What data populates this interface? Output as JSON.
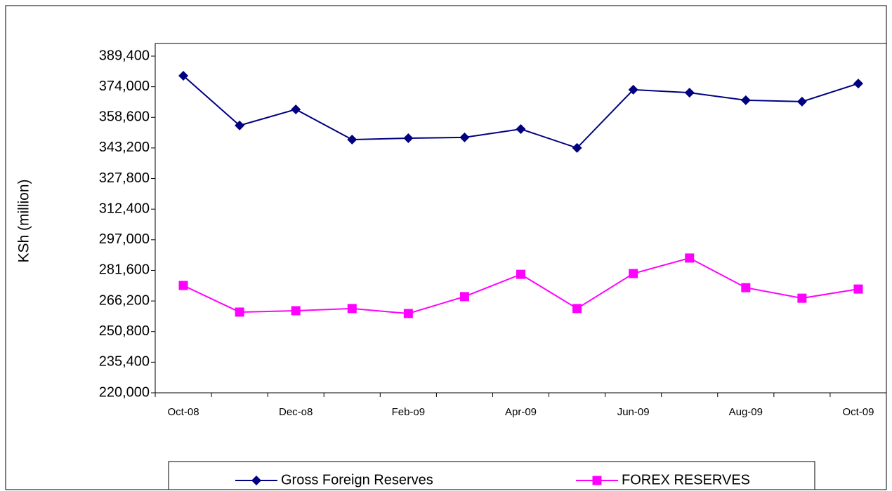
{
  "chart_data": {
    "type": "line",
    "y_label": "KSh (million)",
    "categories": [
      "Oct-08",
      null,
      "Dec-o8",
      null,
      "Feb-o9",
      null,
      "Apr-09",
      null,
      "Jun-09",
      null,
      "Aug-09",
      null,
      "Oct-09"
    ],
    "series": [
      {
        "name": "Gross Foreign Reserves",
        "color": "#000080",
        "marker": "diamond",
        "values": [
          379500,
          354500,
          362600,
          347400,
          348100,
          348500,
          352700,
          343200,
          372500,
          371000,
          367200,
          366500,
          375600
        ]
      },
      {
        "name": "FOREX RESERVES",
        "color": "#ff00ff",
        "marker": "square",
        "values": [
          274000,
          260600,
          261300,
          262400,
          259900,
          268400,
          279600,
          262400,
          280000,
          287800,
          272900,
          267600,
          272200
        ]
      }
    ],
    "ylim": [
      220000,
      389400
    ],
    "yticks": [
      {
        "value": 220000,
        "label": "220,000"
      },
      {
        "value": 235400,
        "label": "235,400"
      },
      {
        "value": 250800,
        "label": "250,800"
      },
      {
        "value": 266200,
        "label": "266,200"
      },
      {
        "value": 281600,
        "label": "281,600"
      },
      {
        "value": 297000,
        "label": "297,000"
      },
      {
        "value": 312400,
        "label": "312,400"
      },
      {
        "value": 327800,
        "label": "327,800"
      },
      {
        "value": 343200,
        "label": "343,200"
      },
      {
        "value": 358600,
        "label": "358,600"
      },
      {
        "value": 374000,
        "label": "374,000"
      },
      {
        "value": 389400,
        "label": "389,400"
      }
    ],
    "legend": "bottom"
  }
}
